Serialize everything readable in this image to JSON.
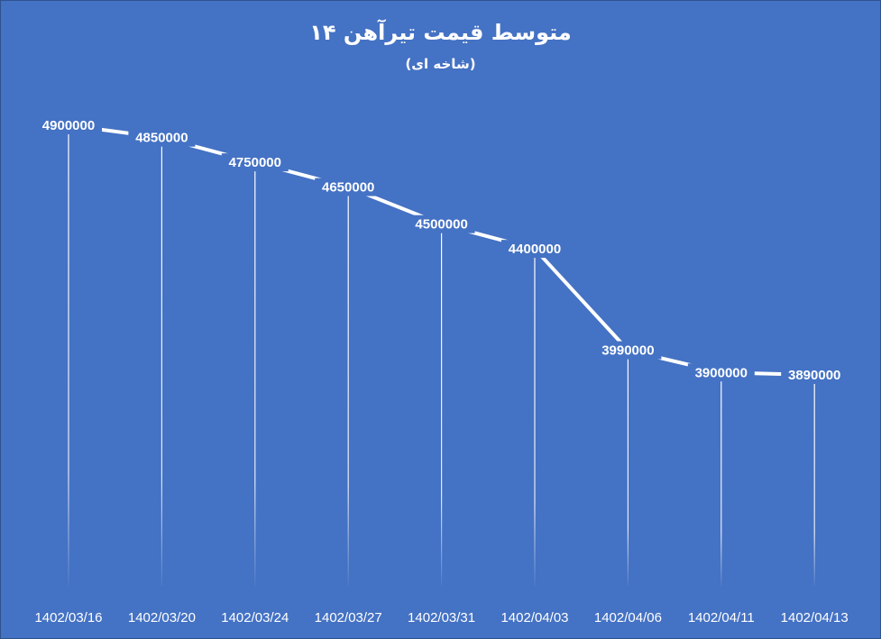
{
  "chart_data": {
    "type": "line",
    "title": "متوسط قیمت تیرآهن ۱۴",
    "subtitle": "(شاخه ای)",
    "categories": [
      "1402/03/16",
      "1402/03/20",
      "1402/03/24",
      "1402/03/27",
      "1402/03/31",
      "1402/04/03",
      "1402/04/06",
      "1402/04/11",
      "1402/04/13"
    ],
    "series": [
      {
        "values": [
          4900000,
          4850000,
          4750000,
          4650000,
          4500000,
          4400000,
          3990000,
          3900000,
          3890000
        ]
      }
    ],
    "xlabel": "",
    "ylabel": "",
    "legend": "none",
    "grid": false,
    "drop_lines": true,
    "colors": {
      "background": "#4472C4",
      "line": "#ffffff",
      "text": "#ffffff"
    }
  }
}
